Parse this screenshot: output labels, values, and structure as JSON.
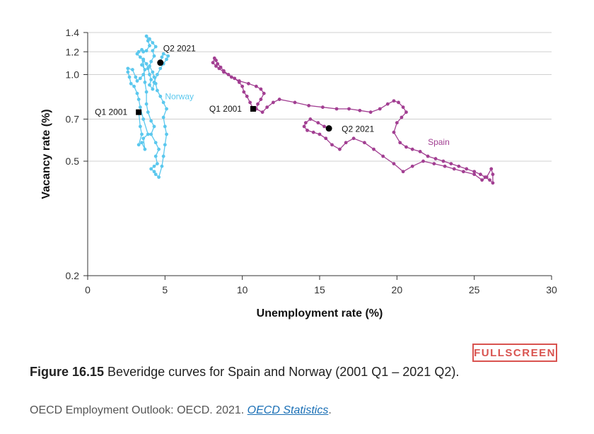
{
  "fullscreen_label": "FULLSCREEN",
  "caption": {
    "label": "Figure 16.15",
    "text": " Beveridge curves for Spain and Norway (2001 Q1 – 2021 Q2)."
  },
  "source": {
    "text": "OECD Employment Outlook: OECD. 2021. ",
    "link_text": "OECD Statistics",
    "suffix": "."
  },
  "chart_data": {
    "type": "scatter",
    "xlabel": "Unemployment rate (%)",
    "ylabel": "Vacancy rate (%)",
    "xlim": [
      0,
      30
    ],
    "ylim": [
      0.2,
      1.4
    ],
    "y_scale": "log",
    "xticks": [
      0,
      5,
      10,
      15,
      20,
      25,
      30
    ],
    "yticks": [
      0.2,
      0.5,
      0.7,
      1.0,
      1.2,
      1.4
    ],
    "ytick_labels": [
      "0.2",
      "0.5",
      "0.7",
      "1.0",
      "1.2",
      "1.4"
    ],
    "grid": "horizontal",
    "series": [
      {
        "name": "Norway",
        "color": "#5bc8ee",
        "points": [
          [
            3.3,
            0.74
          ],
          [
            3.4,
            0.66
          ],
          [
            3.5,
            0.62
          ],
          [
            3.3,
            0.57
          ],
          [
            3.5,
            0.58
          ],
          [
            3.7,
            0.55
          ],
          [
            3.6,
            0.6
          ],
          [
            3.9,
            0.62
          ],
          [
            3.6,
            0.7
          ],
          [
            3.4,
            0.77
          ],
          [
            3.3,
            0.82
          ],
          [
            3.2,
            0.86
          ],
          [
            3.0,
            0.91
          ],
          [
            2.8,
            0.93
          ],
          [
            2.7,
            0.98
          ],
          [
            2.6,
            1.02
          ],
          [
            2.6,
            1.05
          ],
          [
            2.9,
            1.04
          ],
          [
            3.1,
            0.98
          ],
          [
            3.2,
            0.95
          ],
          [
            3.4,
            0.97
          ],
          [
            3.6,
            1.0
          ],
          [
            3.7,
            1.04
          ],
          [
            3.5,
            1.08
          ],
          [
            3.6,
            1.13
          ],
          [
            3.7,
            0.94
          ],
          [
            3.8,
            0.87
          ],
          [
            3.8,
            0.79
          ],
          [
            3.9,
            0.74
          ],
          [
            4.1,
            0.69
          ],
          [
            4.3,
            0.66
          ],
          [
            4.1,
            0.62
          ],
          [
            4.4,
            0.58
          ],
          [
            4.6,
            0.55
          ],
          [
            4.4,
            0.52
          ],
          [
            4.5,
            0.49
          ],
          [
            4.3,
            0.48
          ],
          [
            4.1,
            0.47
          ],
          [
            4.3,
            0.46
          ],
          [
            4.4,
            0.45
          ],
          [
            4.6,
            0.44
          ],
          [
            4.8,
            0.48
          ],
          [
            4.9,
            0.52
          ],
          [
            5.0,
            0.57
          ],
          [
            5.1,
            0.62
          ],
          [
            5.0,
            0.66
          ],
          [
            4.9,
            0.71
          ],
          [
            5.1,
            0.76
          ],
          [
            4.9,
            0.8
          ],
          [
            4.7,
            0.84
          ],
          [
            4.5,
            0.88
          ],
          [
            4.4,
            0.93
          ],
          [
            4.3,
            0.98
          ],
          [
            4.2,
            1.02
          ],
          [
            4.0,
            1.07
          ],
          [
            4.1,
            1.11
          ],
          [
            4.3,
            1.16
          ],
          [
            4.2,
            1.21
          ],
          [
            4.4,
            1.25
          ],
          [
            4.2,
            1.29
          ],
          [
            4.0,
            1.33
          ],
          [
            3.8,
            1.36
          ],
          [
            3.9,
            1.31
          ],
          [
            4.0,
            1.26
          ],
          [
            3.8,
            1.21
          ],
          [
            3.6,
            1.2
          ],
          [
            3.5,
            1.22
          ],
          [
            3.3,
            1.2
          ],
          [
            3.2,
            1.18
          ],
          [
            3.4,
            1.15
          ],
          [
            3.6,
            1.12
          ],
          [
            3.8,
            1.09
          ],
          [
            3.9,
            1.05
          ],
          [
            4.0,
            1.0
          ],
          [
            4.1,
            0.96
          ],
          [
            4.0,
            0.92
          ],
          [
            4.2,
            0.89
          ],
          [
            4.3,
            0.94
          ],
          [
            4.5,
            1.0
          ],
          [
            4.7,
            1.05
          ],
          [
            4.9,
            1.09
          ],
          [
            5.1,
            1.13
          ],
          [
            5.2,
            1.16
          ],
          [
            4.9,
            1.18
          ],
          [
            4.8,
            1.15
          ],
          [
            4.7,
            1.1
          ]
        ],
        "start": {
          "label": "Q1 2001",
          "x": 3.3,
          "y": 0.74,
          "marker": "square"
        },
        "end": {
          "label": "Q2 2021",
          "x": 4.7,
          "y": 1.1,
          "marker": "circle"
        }
      },
      {
        "name": "Spain",
        "color": "#a23f92",
        "points": [
          [
            10.7,
            0.76
          ],
          [
            10.5,
            0.8
          ],
          [
            10.3,
            0.84
          ],
          [
            10.1,
            0.87
          ],
          [
            10.0,
            0.91
          ],
          [
            9.8,
            0.94
          ],
          [
            9.5,
            0.97
          ],
          [
            9.1,
            1.0
          ],
          [
            8.8,
            1.03
          ],
          [
            8.6,
            1.06
          ],
          [
            8.4,
            1.09
          ],
          [
            8.3,
            1.12
          ],
          [
            8.2,
            1.14
          ],
          [
            8.1,
            1.1
          ],
          [
            8.3,
            1.07
          ],
          [
            8.5,
            1.05
          ],
          [
            8.8,
            1.02
          ],
          [
            9.3,
            0.98
          ],
          [
            9.8,
            0.95
          ],
          [
            10.4,
            0.93
          ],
          [
            10.9,
            0.91
          ],
          [
            11.2,
            0.89
          ],
          [
            11.4,
            0.86
          ],
          [
            11.2,
            0.82
          ],
          [
            11.0,
            0.79
          ],
          [
            10.9,
            0.76
          ],
          [
            11.3,
            0.74
          ],
          [
            11.6,
            0.77
          ],
          [
            12.0,
            0.8
          ],
          [
            12.4,
            0.82
          ],
          [
            13.4,
            0.8
          ],
          [
            14.3,
            0.78
          ],
          [
            15.2,
            0.77
          ],
          [
            16.1,
            0.76
          ],
          [
            16.9,
            0.76
          ],
          [
            17.6,
            0.75
          ],
          [
            18.3,
            0.74
          ],
          [
            18.9,
            0.76
          ],
          [
            19.4,
            0.79
          ],
          [
            19.8,
            0.81
          ],
          [
            20.1,
            0.8
          ],
          [
            20.4,
            0.77
          ],
          [
            20.6,
            0.74
          ],
          [
            20.3,
            0.71
          ],
          [
            20.0,
            0.68
          ],
          [
            19.8,
            0.63
          ],
          [
            20.2,
            0.58
          ],
          [
            20.6,
            0.56
          ],
          [
            21.0,
            0.55
          ],
          [
            21.5,
            0.54
          ],
          [
            22.0,
            0.52
          ],
          [
            22.5,
            0.51
          ],
          [
            23.0,
            0.5
          ],
          [
            23.5,
            0.49
          ],
          [
            24.0,
            0.48
          ],
          [
            24.5,
            0.47
          ],
          [
            25.0,
            0.46
          ],
          [
            25.4,
            0.45
          ],
          [
            25.7,
            0.44
          ],
          [
            26.0,
            0.43
          ],
          [
            26.2,
            0.42
          ],
          [
            26.2,
            0.45
          ],
          [
            26.1,
            0.47
          ],
          [
            25.8,
            0.44
          ],
          [
            25.5,
            0.43
          ],
          [
            25.0,
            0.45
          ],
          [
            24.3,
            0.46
          ],
          [
            23.7,
            0.47
          ],
          [
            23.1,
            0.48
          ],
          [
            22.4,
            0.49
          ],
          [
            21.7,
            0.5
          ],
          [
            21.0,
            0.48
          ],
          [
            20.4,
            0.46
          ],
          [
            19.8,
            0.49
          ],
          [
            19.1,
            0.52
          ],
          [
            18.5,
            0.55
          ],
          [
            17.9,
            0.58
          ],
          [
            17.2,
            0.6
          ],
          [
            16.7,
            0.58
          ],
          [
            16.3,
            0.55
          ],
          [
            15.8,
            0.57
          ],
          [
            15.4,
            0.6
          ],
          [
            15.0,
            0.62
          ],
          [
            14.6,
            0.63
          ],
          [
            14.2,
            0.64
          ],
          [
            14.0,
            0.66
          ],
          [
            14.1,
            0.68
          ],
          [
            14.4,
            0.7
          ],
          [
            14.9,
            0.68
          ],
          [
            15.3,
            0.66
          ],
          [
            15.6,
            0.65
          ]
        ],
        "start": {
          "label": "Q1 2001",
          "x": 10.7,
          "y": 0.76,
          "marker": "square"
        },
        "end": {
          "label": "Q2 2021",
          "x": 15.6,
          "y": 0.65,
          "marker": "circle"
        }
      }
    ]
  }
}
